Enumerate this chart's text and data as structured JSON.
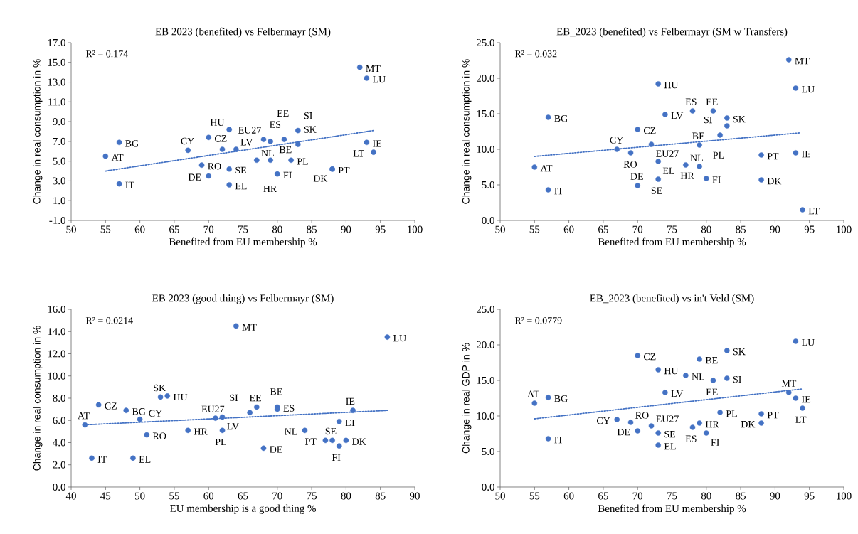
{
  "chart_data": [
    {
      "type": "scatter",
      "title": "EB 2023 (benefited)  vs Felbermayr  (SM)",
      "xlabel": "Benefited from EU membership %",
      "ylabel": "Change in real consumption in %",
      "x": [
        55,
        57,
        57,
        67,
        69,
        70,
        70,
        72,
        73,
        73,
        73,
        74,
        77,
        78,
        79,
        79,
        80,
        81,
        82,
        83,
        83,
        88,
        88,
        92,
        93,
        93,
        94
      ],
      "series": [
        {
          "color": "#4472c4",
          "marker": "circle",
          "values": [
            5.5,
            6.9,
            2.7,
            6.1,
            4.6,
            7.4,
            3.5,
            6.2,
            8.2,
            2.6,
            4.2,
            6.2,
            5.1,
            7.2,
            7.0,
            5.1,
            3.7,
            7.2,
            5.1,
            6.7,
            8.1,
            4.2,
            4.2,
            14.5,
            13.4,
            6.9,
            5.9
          ]
        },
        {
          "type": "line",
          "color": "#4472c4",
          "line_style": "dotted",
          "marker": "none",
          "x": [
            55,
            94
          ],
          "values": [
            4.0,
            8.1
          ]
        }
      ],
      "xlim": [
        50,
        100
      ],
      "xticks": [
        50,
        55,
        60,
        65,
        70,
        75,
        80,
        85,
        90,
        95,
        100
      ],
      "ylim": [
        -1,
        17
      ],
      "yticks": [
        {
          "value": -1,
          "label": "-1.0"
        },
        {
          "value": 1,
          "label": "1.0"
        },
        {
          "value": 3,
          "label": "3.0"
        },
        {
          "value": 5,
          "label": "5.0"
        },
        {
          "value": 7,
          "label": "7.0"
        },
        {
          "value": 9,
          "label": "9.0"
        },
        {
          "value": 11,
          "label": "11.0"
        },
        {
          "value": 13,
          "label": "13.0"
        },
        {
          "value": 15,
          "label": "15.0"
        },
        {
          "value": 17,
          "label": "17.0"
        }
      ],
      "annotations": [
        "R² = 0.174",
        {
          "text": "AT",
          "x": 55,
          "y": 5.5
        },
        {
          "text": "BG",
          "x": 57,
          "y": 6.9
        },
        {
          "text": "IT",
          "x": 57,
          "y": 2.7
        },
        {
          "text": "CY",
          "x": 67,
          "y": 6.1
        },
        {
          "text": "RO",
          "x": 69,
          "y": 4.6
        },
        {
          "text": "CZ",
          "x": 70,
          "y": 7.4
        },
        {
          "text": "DE",
          "x": 70,
          "y": 3.5
        },
        {
          "text": "EU27",
          "x": 72,
          "y": 6.2
        },
        {
          "text": "HU",
          "x": 73,
          "y": 8.2
        },
        {
          "text": "EL",
          "x": 73,
          "y": 2.6
        },
        {
          "text": "SE",
          "x": 73,
          "y": 4.2
        },
        {
          "text": "LV",
          "x": 74,
          "y": 6.2
        },
        {
          "text": "NL",
          "x": 77,
          "y": 5.1
        },
        {
          "text": "ES",
          "x": 78,
          "y": 7.2
        },
        {
          "text": "BE",
          "x": 79,
          "y": 7.0
        },
        {
          "text": "HR",
          "x": 79,
          "y": 5.1
        },
        {
          "text": "FI",
          "x": 80,
          "y": 3.7
        },
        {
          "text": "EE",
          "x": 81,
          "y": 7.2
        },
        {
          "text": "PL",
          "x": 82,
          "y": 5.1
        },
        {
          "text": "SK",
          "x": 83,
          "y": 6.7
        },
        {
          "text": "SI",
          "x": 83,
          "y": 8.1
        },
        {
          "text": "PT",
          "x": 88,
          "y": 4.2
        },
        {
          "text": "DK",
          "x": 88,
          "y": 4.2
        },
        {
          "text": "MT",
          "x": 92,
          "y": 14.5
        },
        {
          "text": "LU",
          "x": 93,
          "y": 13.4
        },
        {
          "text": "IE",
          "x": 93,
          "y": 6.9
        },
        {
          "text": "LT",
          "x": 94,
          "y": 5.9
        }
      ]
    },
    {
      "type": "scatter",
      "title": "EB_2023 (benefited)  vs Felbermayr  (SM w Transfers)",
      "xlabel": "Benefited from EU membership %",
      "ylabel": "Change in real consumption in %",
      "x": [
        55,
        57,
        57,
        67,
        69,
        70,
        70,
        72,
        73,
        73,
        73,
        74,
        77,
        78,
        79,
        79,
        80,
        81,
        82,
        83,
        83,
        88,
        88,
        92,
        93,
        93,
        94
      ],
      "series": [
        {
          "color": "#4472c4",
          "marker": "circle",
          "values": [
            7.5,
            14.5,
            4.3,
            10.0,
            9.5,
            12.8,
            4.9,
            10.7,
            19.2,
            8.3,
            5.8,
            14.9,
            7.8,
            15.4,
            10.6,
            7.6,
            5.9,
            15.4,
            12.0,
            14.4,
            13.3,
            9.2,
            5.7,
            22.6,
            18.6,
            9.5,
            1.5
          ]
        },
        {
          "type": "line",
          "color": "#4472c4",
          "line_style": "dotted",
          "marker": "none",
          "x": [
            55,
            93.5
          ],
          "values": [
            9.0,
            12.3
          ]
        }
      ],
      "xlim": [
        50,
        100
      ],
      "xticks": [
        50,
        55,
        60,
        65,
        70,
        75,
        80,
        85,
        90,
        95,
        100
      ],
      "ylim": [
        0,
        25
      ],
      "yticks": [
        {
          "value": 0,
          "label": "0.0"
        },
        {
          "value": 5,
          "label": "5.0"
        },
        {
          "value": 10,
          "label": "10.0"
        },
        {
          "value": 15,
          "label": "15.0"
        },
        {
          "value": 20,
          "label": "20.0"
        },
        {
          "value": 25,
          "label": "25.0"
        }
      ],
      "annotations": [
        "R² = 0.032",
        {
          "text": "AT",
          "x": 55,
          "y": 7.5
        },
        {
          "text": "BG",
          "x": 57,
          "y": 14.5
        },
        {
          "text": "IT",
          "x": 57,
          "y": 4.3
        },
        {
          "text": "CY",
          "x": 67,
          "y": 10.0
        },
        {
          "text": "RO",
          "x": 69,
          "y": 9.5
        },
        {
          "text": "CZ",
          "x": 70,
          "y": 12.8
        },
        {
          "text": "DE",
          "x": 70,
          "y": 4.9
        },
        {
          "text": "EU27",
          "x": 72,
          "y": 10.7
        },
        {
          "text": "HU",
          "x": 73,
          "y": 19.2
        },
        {
          "text": "EL",
          "x": 73,
          "y": 8.3
        },
        {
          "text": "SE",
          "x": 73,
          "y": 5.8
        },
        {
          "text": "LV",
          "x": 74,
          "y": 14.9
        },
        {
          "text": "NL",
          "x": 77,
          "y": 7.8
        },
        {
          "text": "ES",
          "x": 78,
          "y": 15.4
        },
        {
          "text": "BE",
          "x": 79,
          "y": 10.6
        },
        {
          "text": "HR",
          "x": 79,
          "y": 7.6
        },
        {
          "text": "FI",
          "x": 80,
          "y": 5.9
        },
        {
          "text": "EE",
          "x": 81,
          "y": 15.4
        },
        {
          "text": "PL",
          "x": 82,
          "y": 12.0
        },
        {
          "text": "SK",
          "x": 83,
          "y": 14.4
        },
        {
          "text": "SI",
          "x": 83,
          "y": 13.3
        },
        {
          "text": "PT",
          "x": 88,
          "y": 9.2
        },
        {
          "text": "DK",
          "x": 88,
          "y": 5.7
        },
        {
          "text": "MT",
          "x": 92,
          "y": 22.6
        },
        {
          "text": "LU",
          "x": 93,
          "y": 18.6
        },
        {
          "text": "IE",
          "x": 93,
          "y": 9.5
        },
        {
          "text": "LT",
          "x": 94,
          "y": 1.5
        }
      ]
    },
    {
      "type": "scatter",
      "title": "EB 2023 (good thing)  vs Felbermayr  (SM)",
      "xlabel": "EU membership is a good thing %",
      "ylabel": "Change in real consumption in %",
      "x": [
        42,
        48,
        43,
        50,
        51,
        44,
        68,
        61,
        54,
        49,
        78,
        62,
        74,
        70,
        70,
        57,
        79,
        67,
        62,
        53,
        66,
        77,
        80,
        64,
        86,
        81,
        79
      ],
      "series": [
        {
          "color": "#4472c4",
          "marker": "circle",
          "values": [
            5.6,
            6.9,
            2.6,
            6.1,
            4.7,
            7.4,
            3.5,
            6.2,
            8.2,
            2.6,
            4.2,
            6.3,
            5.1,
            7.2,
            7.0,
            5.1,
            3.7,
            7.2,
            5.1,
            8.1,
            6.7,
            4.2,
            4.2,
            14.5,
            13.5,
            6.9,
            5.9
          ]
        },
        {
          "type": "line",
          "color": "#4472c4",
          "line_style": "dotted",
          "marker": "none",
          "x": [
            42,
            86
          ],
          "values": [
            5.6,
            6.9
          ]
        }
      ],
      "xlim": [
        40,
        90
      ],
      "xticks": [
        40,
        45,
        50,
        55,
        60,
        65,
        70,
        75,
        80,
        85,
        90
      ],
      "ylim": [
        0,
        16
      ],
      "yticks": [
        {
          "value": 0,
          "label": "0.0"
        },
        {
          "value": 2,
          "label": "2.0"
        },
        {
          "value": 4,
          "label": "4.0"
        },
        {
          "value": 6,
          "label": "6.0"
        },
        {
          "value": 8,
          "label": "8.0"
        },
        {
          "value": 10,
          "label": "10.0"
        },
        {
          "value": 12,
          "label": "12.0"
        },
        {
          "value": 14,
          "label": "14.0"
        },
        {
          "value": 16,
          "label": "16.0"
        }
      ],
      "annotations": [
        "R² = 0.0214",
        {
          "text": "AT",
          "x": 42,
          "y": 5.6
        },
        {
          "text": "BG",
          "x": 48,
          "y": 6.9
        },
        {
          "text": "IT",
          "x": 43,
          "y": 2.6
        },
        {
          "text": "CY",
          "x": 50,
          "y": 6.1
        },
        {
          "text": "RO",
          "x": 51,
          "y": 4.7
        },
        {
          "text": "CZ",
          "x": 44,
          "y": 7.4
        },
        {
          "text": "DE",
          "x": 68,
          "y": 3.5
        },
        {
          "text": "EU27",
          "x": 61,
          "y": 6.2
        },
        {
          "text": "HU",
          "x": 54,
          "y": 8.2
        },
        {
          "text": "EL",
          "x": 49,
          "y": 2.6
        },
        {
          "text": "SE",
          "x": 78,
          "y": 4.2
        },
        {
          "text": "LV",
          "x": 62,
          "y": 6.3
        },
        {
          "text": "NL",
          "x": 74,
          "y": 5.1
        },
        {
          "text": "ES",
          "x": 70,
          "y": 7.2
        },
        {
          "text": "BE",
          "x": 70,
          "y": 7.0
        },
        {
          "text": "HR",
          "x": 57,
          "y": 5.1
        },
        {
          "text": "FI",
          "x": 79,
          "y": 3.7
        },
        {
          "text": "EE",
          "x": 67,
          "y": 7.2
        },
        {
          "text": "PL",
          "x": 62,
          "y": 5.1
        },
        {
          "text": "SK",
          "x": 53,
          "y": 8.1
        },
        {
          "text": "SI",
          "x": 66,
          "y": 6.7
        },
        {
          "text": "PT",
          "x": 77,
          "y": 4.2
        },
        {
          "text": "DK",
          "x": 80,
          "y": 4.2
        },
        {
          "text": "MT",
          "x": 64,
          "y": 14.5
        },
        {
          "text": "LU",
          "x": 86,
          "y": 13.5
        },
        {
          "text": "IE",
          "x": 81,
          "y": 6.9
        },
        {
          "text": "LT",
          "x": 79,
          "y": 5.9
        }
      ]
    },
    {
      "type": "scatter",
      "title": "EB_2023 (benefited)  vs in't Veld  (SM)",
      "xlabel": "Benefited from EU membership %",
      "ylabel": "Change in real GDP in %",
      "x": [
        55,
        57,
        57,
        67,
        69,
        70,
        70,
        72,
        73,
        73,
        73,
        74,
        77,
        78,
        79,
        79,
        80,
        81,
        82,
        83,
        83,
        88,
        88,
        92,
        93,
        93,
        94
      ],
      "series": [
        {
          "color": "#4472c4",
          "marker": "circle",
          "values": [
            11.8,
            12.6,
            6.8,
            9.5,
            9.1,
            18.5,
            7.9,
            8.6,
            16.5,
            5.9,
            7.6,
            13.3,
            15.7,
            8.4,
            18.0,
            9.0,
            7.6,
            15.0,
            10.5,
            19.2,
            15.3,
            10.3,
            9.0,
            13.3,
            20.5,
            12.5,
            11.1
          ]
        },
        {
          "type": "line",
          "color": "#4472c4",
          "line_style": "dotted",
          "marker": "none",
          "x": [
            55,
            94
          ],
          "values": [
            9.6,
            13.8
          ]
        }
      ],
      "xlim": [
        50,
        100
      ],
      "xticks": [
        50,
        55,
        60,
        65,
        70,
        75,
        80,
        85,
        90,
        95,
        100
      ],
      "ylim": [
        0,
        25
      ],
      "yticks": [
        {
          "value": 0,
          "label": "0.0"
        },
        {
          "value": 5,
          "label": "5.0"
        },
        {
          "value": 10,
          "label": "10.0"
        },
        {
          "value": 15,
          "label": "15.0"
        },
        {
          "value": 20,
          "label": "20.0"
        },
        {
          "value": 25,
          "label": "25.0"
        }
      ],
      "annotations": [
        "R² = 0.0779",
        {
          "text": "AT",
          "x": 55,
          "y": 11.8
        },
        {
          "text": "BG",
          "x": 57,
          "y": 12.6
        },
        {
          "text": "IT",
          "x": 57,
          "y": 6.8
        },
        {
          "text": "CY",
          "x": 67,
          "y": 9.5
        },
        {
          "text": "RO",
          "x": 69,
          "y": 9.1
        },
        {
          "text": "CZ",
          "x": 70,
          "y": 18.5
        },
        {
          "text": "DE",
          "x": 70,
          "y": 7.9
        },
        {
          "text": "EU27",
          "x": 72,
          "y": 8.6
        },
        {
          "text": "HU",
          "x": 73,
          "y": 16.5
        },
        {
          "text": "EL",
          "x": 73,
          "y": 5.9
        },
        {
          "text": "SE",
          "x": 73,
          "y": 7.6
        },
        {
          "text": "LV",
          "x": 74,
          "y": 13.3
        },
        {
          "text": "NL",
          "x": 77,
          "y": 15.7
        },
        {
          "text": "ES",
          "x": 78,
          "y": 8.4
        },
        {
          "text": "BE",
          "x": 79,
          "y": 18.0
        },
        {
          "text": "HR",
          "x": 79,
          "y": 9.0
        },
        {
          "text": "FI",
          "x": 80,
          "y": 7.6
        },
        {
          "text": "EE",
          "x": 81,
          "y": 15.0
        },
        {
          "text": "PL",
          "x": 82,
          "y": 10.5
        },
        {
          "text": "SK",
          "x": 83,
          "y": 19.2
        },
        {
          "text": "SI",
          "x": 83,
          "y": 15.3
        },
        {
          "text": "PT",
          "x": 88,
          "y": 10.3
        },
        {
          "text": "DK",
          "x": 88,
          "y": 9.0
        },
        {
          "text": "MT",
          "x": 92,
          "y": 13.3
        },
        {
          "text": "LU",
          "x": 93,
          "y": 20.5
        },
        {
          "text": "IE",
          "x": 93,
          "y": 12.5
        },
        {
          "text": "LT",
          "x": 94,
          "y": 11.1
        }
      ]
    }
  ]
}
